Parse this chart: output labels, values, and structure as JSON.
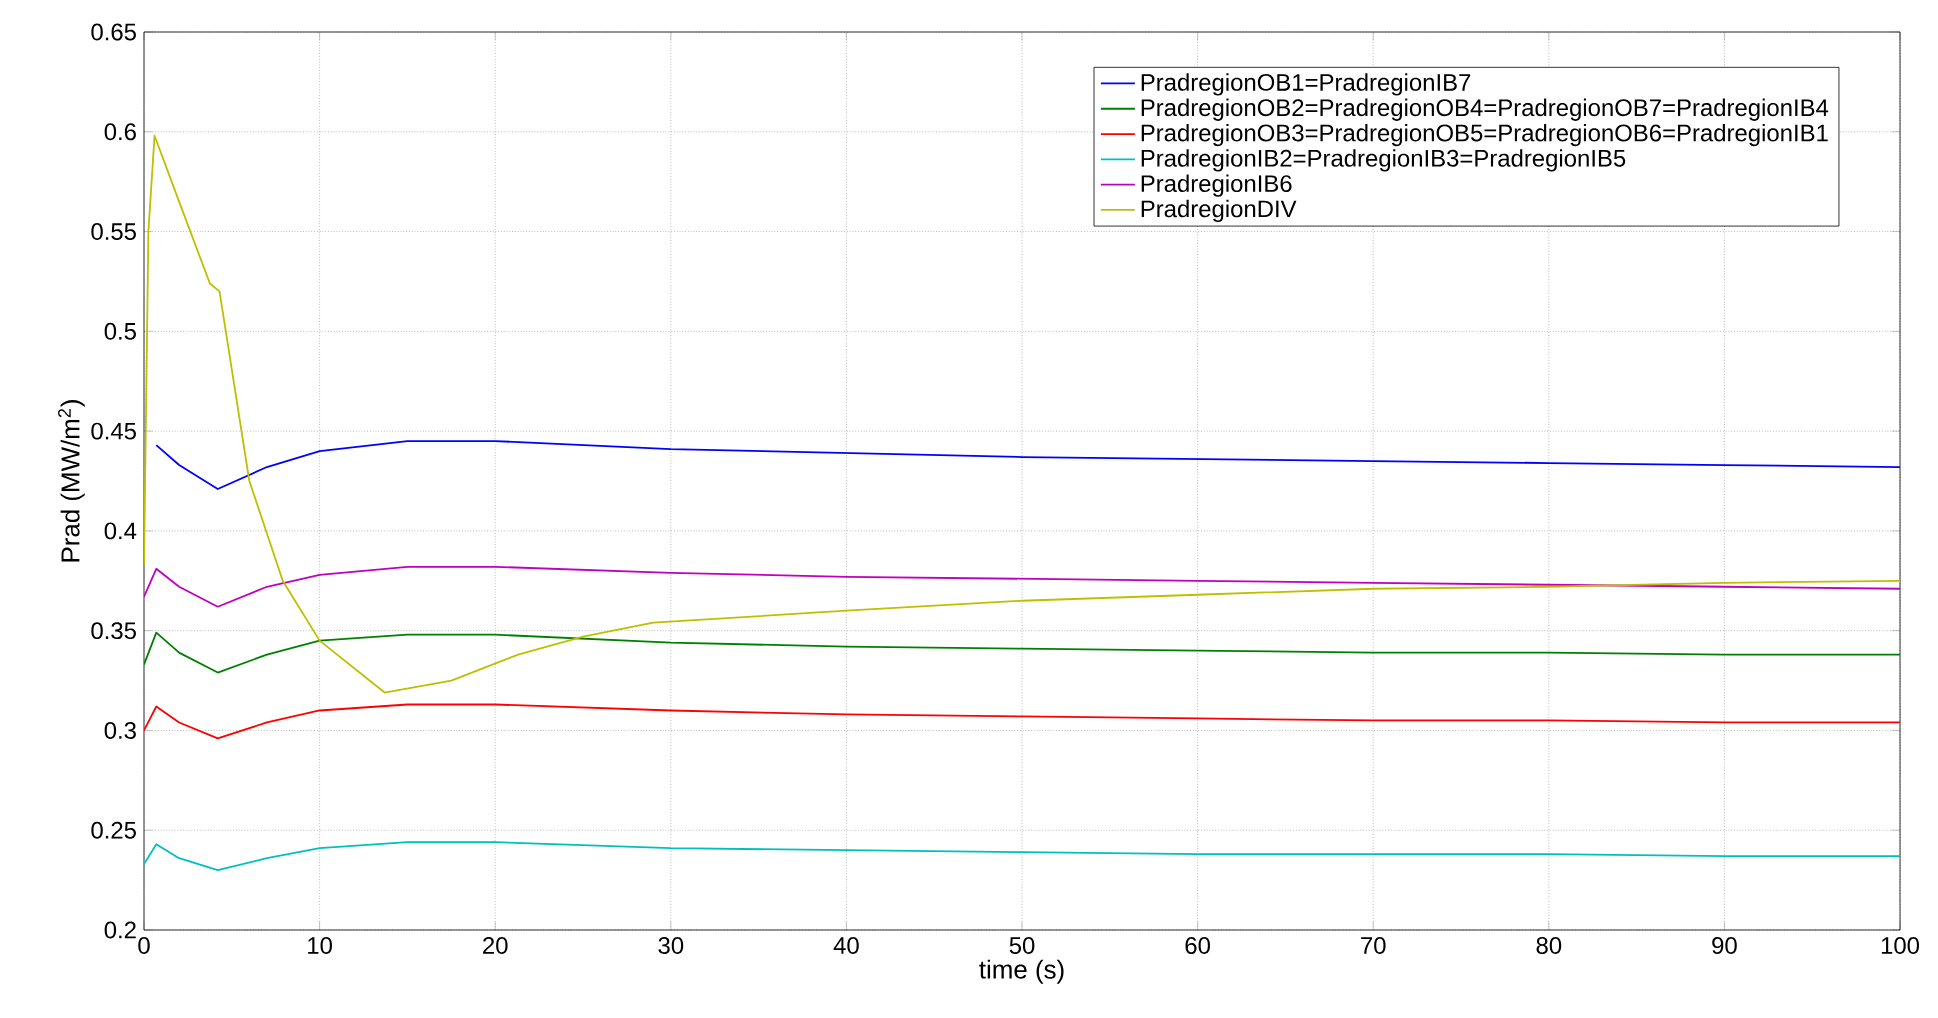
{
  "chart_data": {
    "type": "line",
    "xlabel": "time (s)",
    "ylabel": "Prad (MW/m$^{2}$)",
    "xlim": [
      0,
      100
    ],
    "ylim": [
      0.2,
      0.65
    ],
    "xticks": [
      0,
      10,
      20,
      30,
      40,
      50,
      60,
      70,
      80,
      90,
      100
    ],
    "yticks": [
      0.2,
      0.25,
      0.3,
      0.35,
      0.4,
      0.45,
      0.5,
      0.55,
      0.6,
      0.65
    ],
    "grid": true,
    "legend": "top right",
    "x": [
      0,
      0.7,
      2,
      4.2,
      7,
      10,
      15,
      20,
      30,
      40,
      50,
      60,
      70,
      80,
      90,
      100
    ],
    "series": [
      {
        "name": "PradregionOB1=PradregionIB7",
        "color": "#0000ff",
        "values": [
          null,
          0.443,
          0.433,
          0.421,
          0.432,
          0.44,
          0.445,
          0.445,
          0.441,
          0.439,
          0.437,
          0.436,
          0.435,
          0.434,
          0.433,
          0.432
        ]
      },
      {
        "name": "PradregionOB2=PradregionOB4=PradregionOB7=PradregionIB4",
        "color": "#008000",
        "values": [
          0.333,
          0.349,
          0.339,
          0.329,
          0.338,
          0.345,
          0.348,
          0.348,
          0.344,
          0.342,
          0.341,
          0.34,
          0.339,
          0.339,
          0.338,
          0.338
        ]
      },
      {
        "name": "PradregionOB3=PradregionOB5=PradregionOB6=PradregionIB1",
        "color": "#ff0000",
        "values": [
          0.3,
          0.312,
          0.304,
          0.296,
          0.304,
          0.31,
          0.313,
          0.313,
          0.31,
          0.308,
          0.307,
          0.306,
          0.305,
          0.305,
          0.304,
          0.304
        ]
      },
      {
        "name": "PradregionIB2=PradregionIB3=PradregionIB5",
        "color": "#00bfbf",
        "values": [
          0.233,
          0.243,
          0.236,
          0.23,
          0.236,
          0.241,
          0.244,
          0.244,
          0.241,
          0.24,
          0.239,
          0.238,
          0.238,
          0.238,
          0.237,
          0.237
        ]
      },
      {
        "name": "PradregionIB6",
        "color": "#bf00bf",
        "values": [
          0.367,
          0.381,
          0.372,
          0.362,
          0.372,
          0.378,
          0.382,
          0.382,
          0.379,
          0.377,
          0.376,
          0.375,
          0.374,
          0.373,
          0.372,
          0.371
        ]
      },
      {
        "name": "PradregionDIV",
        "color": "#bfbf00",
        "x": [
          0,
          0.25,
          0.6,
          2,
          3.75,
          4.3,
          6,
          7.9,
          10,
          13.7,
          17.5,
          21.3,
          25,
          29,
          40,
          50,
          60,
          70,
          80,
          90,
          100
        ],
        "values": [
          0.383,
          0.55,
          0.598,
          0.565,
          0.524,
          0.52,
          0.425,
          0.375,
          0.345,
          0.319,
          0.325,
          0.338,
          0.347,
          0.354,
          0.36,
          0.365,
          0.368,
          0.371,
          0.372,
          0.374,
          0.375
        ]
      }
    ]
  }
}
